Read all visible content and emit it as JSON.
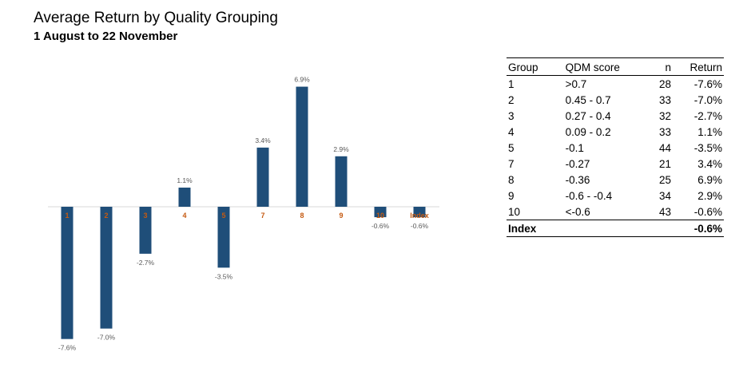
{
  "title": "Average Return by Quality Grouping",
  "subtitle": "1 August to 22 November",
  "chart_data": {
    "type": "bar",
    "categories": [
      "1",
      "2",
      "3",
      "4",
      "5",
      "7",
      "8",
      "9",
      "10",
      "Index"
    ],
    "values": [
      -7.6,
      -7.0,
      -2.7,
      1.1,
      -3.5,
      3.4,
      6.9,
      2.9,
      -0.6,
      -0.6
    ],
    "data_labels": [
      "-7.6%",
      "-7.0%",
      "-2.7%",
      "1.1%",
      "-3.5%",
      "3.4%",
      "6.9%",
      "2.9%",
      "-0.6%",
      "-0.6%"
    ],
    "ylim": [
      -8,
      7.5
    ],
    "bar_color": "#1f4e79",
    "category_label_color": "#c55a11",
    "data_label_color": "#595959",
    "grid": false,
    "legend": "none"
  },
  "table": {
    "headers": [
      "Group",
      "QDM score",
      "n",
      "Return"
    ],
    "rows": [
      [
        "1",
        ">0.7",
        "28",
        "-7.6%"
      ],
      [
        "2",
        "0.45 - 0.7",
        "33",
        "-7.0%"
      ],
      [
        "3",
        "0.27 - 0.4",
        "32",
        "-2.7%"
      ],
      [
        "4",
        "0.09 - 0.2",
        "33",
        "1.1%"
      ],
      [
        "5",
        "-0.1",
        "44",
        "-3.5%"
      ],
      [
        "7",
        "-0.27",
        "21",
        "3.4%"
      ],
      [
        "8",
        "-0.36",
        "25",
        "6.9%"
      ],
      [
        "9",
        "-0.6 - -0.4",
        "34",
        "2.9%"
      ],
      [
        "10",
        "<-0.6",
        "43",
        "-0.6%"
      ]
    ],
    "footer": [
      "Index",
      "",
      "",
      "-0.6%"
    ]
  }
}
